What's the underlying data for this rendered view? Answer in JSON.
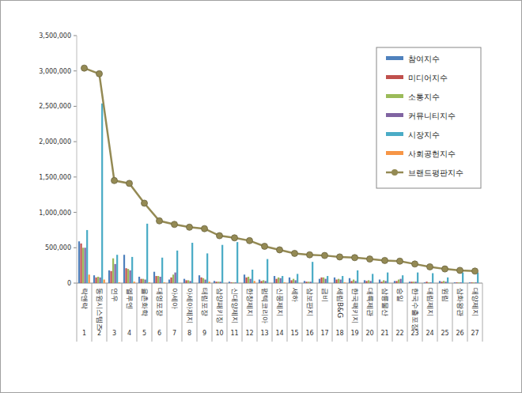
{
  "chart_data": {
    "type": "bar",
    "categories": [
      "락앤락",
      "동원시스템즈",
      "연우",
      "엘루엔",
      "율촌화학",
      "대영포장",
      "아세아",
      "아세아제지",
      "태림포장",
      "삼양패키징",
      "신대양제지",
      "한창제지",
      "펌텍코리아",
      "신풍제지",
      "세하",
      "삼보판지",
      "금비",
      "세림B&G",
      "한국팩키지",
      "대륙제관",
      "삼륭물산",
      "승일",
      "한국수출포장",
      "대림제지",
      "원림",
      "삼화왕관",
      "대양제지"
    ],
    "category_numbers": [
      1,
      2,
      3,
      4,
      5,
      6,
      7,
      8,
      9,
      10,
      11,
      12,
      13,
      14,
      15,
      16,
      17,
      18,
      19,
      20,
      21,
      22,
      23,
      24,
      25,
      26,
      27
    ],
    "ylim": [
      0,
      3500000
    ],
    "yticks": [
      0,
      {
        "value": 500000,
        "label": "500,000"
      },
      {
        "value": 1000000,
        "label": "1,000,000"
      },
      {
        "value": 1500000,
        "label": "1,500,000"
      },
      {
        "value": 2000000,
        "label": "2,000,000"
      },
      {
        "value": 2500000,
        "label": "2,500,000"
      },
      {
        "value": 3000000,
        "label": "3,000,000"
      },
      {
        "value": 3500000,
        "label": "3,500,000"
      }
    ],
    "grid": false,
    "legend": "top-right",
    "series": [
      {
        "name": "참여지수",
        "color": "#4f81bd",
        "values": [
          590000,
          110000,
          180000,
          400000,
          90000,
          160000,
          50000,
          60000,
          110000,
          30000,
          20000,
          120000,
          50000,
          100000,
          80000,
          30000,
          60000,
          80000,
          70000,
          40000,
          50000,
          30000,
          20000,
          10000,
          30000,
          10000,
          10000
        ]
      },
      {
        "name": "미디어지수",
        "color": "#c0504d",
        "values": [
          560000,
          80000,
          170000,
          210000,
          60000,
          100000,
          80000,
          40000,
          80000,
          20000,
          10000,
          80000,
          30000,
          60000,
          40000,
          20000,
          80000,
          50000,
          30000,
          30000,
          20000,
          30000,
          20000,
          20000,
          20000,
          10000,
          10000
        ]
      },
      {
        "name": "소통지수",
        "color": "#9bbb59",
        "values": [
          500000,
          90000,
          350000,
          200000,
          60000,
          100000,
          120000,
          40000,
          70000,
          20000,
          10000,
          90000,
          40000,
          80000,
          60000,
          20000,
          80000,
          60000,
          50000,
          40000,
          40000,
          50000,
          20000,
          10000,
          30000,
          10000,
          10000
        ]
      },
      {
        "name": "커뮤니티지수",
        "color": "#8064a2",
        "values": [
          500000,
          80000,
          270000,
          180000,
          50000,
          90000,
          150000,
          30000,
          50000,
          20000,
          10000,
          60000,
          30000,
          70000,
          40000,
          20000,
          60000,
          50000,
          30000,
          30000,
          30000,
          60000,
          20000,
          10000,
          20000,
          10000,
          10000
        ]
      },
      {
        "name": "시장지수",
        "color": "#4bacc6",
        "values": [
          750000,
          2540000,
          400000,
          370000,
          840000,
          360000,
          460000,
          570000,
          420000,
          540000,
          580000,
          190000,
          340000,
          100000,
          130000,
          300000,
          100000,
          100000,
          180000,
          130000,
          150000,
          110000,
          150000,
          140000,
          80000,
          150000,
          150000
        ]
      },
      {
        "name": "사회공헌지수",
        "color": "#f79646",
        "values": [
          120000,
          50000,
          10000,
          20000,
          10000,
          10000,
          0,
          0,
          20000,
          0,
          0,
          30000,
          0,
          10000,
          0,
          0,
          0,
          10000,
          0,
          0,
          0,
          0,
          0,
          0,
          0,
          0,
          0
        ]
      },
      {
        "name": "브랜드평판지수",
        "type": "line",
        "marker": "circle",
        "color": "#948a54",
        "values": [
          3040000,
          2960000,
          1450000,
          1410000,
          1130000,
          880000,
          830000,
          790000,
          770000,
          670000,
          640000,
          600000,
          520000,
          470000,
          420000,
          400000,
          390000,
          370000,
          360000,
          340000,
          320000,
          310000,
          270000,
          230000,
          200000,
          180000,
          170000
        ]
      }
    ]
  }
}
